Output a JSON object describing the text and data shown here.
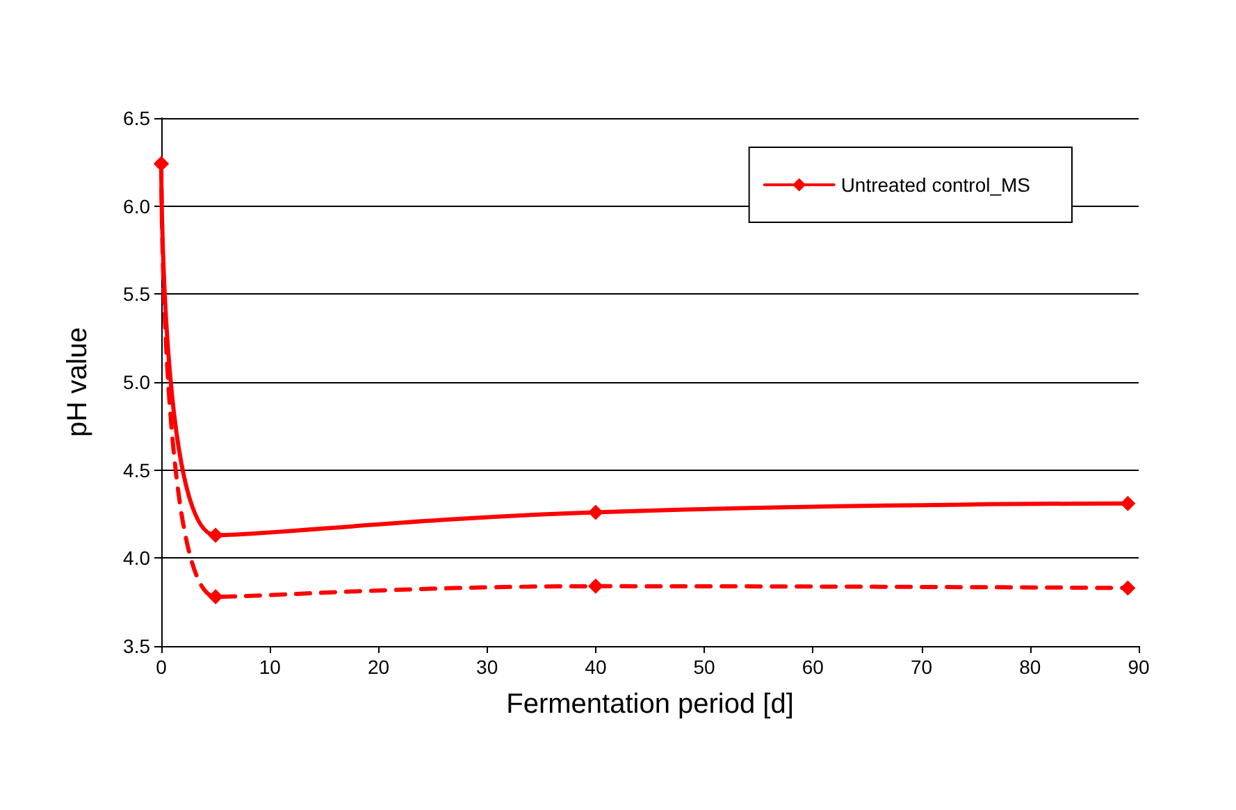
{
  "chart_data": {
    "type": "line",
    "xlabel": "Fermentation period [d]",
    "ylabel": "pH value",
    "x": [
      0,
      5,
      40,
      89
    ],
    "series": [
      {
        "name": "Untreated control_MS",
        "color": "#ff0000",
        "values": [
          6.24,
          4.13,
          4.26,
          4.31
        ],
        "marker": "diamond",
        "line_style": "solid"
      },
      {
        "color": "#ff0000",
        "values": [
          6.24,
          3.78,
          3.84,
          3.83
        ],
        "marker": "diamond",
        "line_style": "dashed"
      }
    ],
    "xlim": [
      0,
      90
    ],
    "xticks": [
      0,
      10,
      20,
      30,
      40,
      50,
      60,
      70,
      80,
      90
    ],
    "ylim": [
      3.5,
      6.5
    ],
    "yticks": [
      3.5,
      {
        "value": 4,
        "label": "4.0"
      },
      4.5,
      {
        "value": 5,
        "label": "5.0"
      },
      5.5,
      {
        "value": 6,
        "label": "6.0"
      },
      6.5
    ],
    "grid": "y",
    "legend": "top right"
  }
}
